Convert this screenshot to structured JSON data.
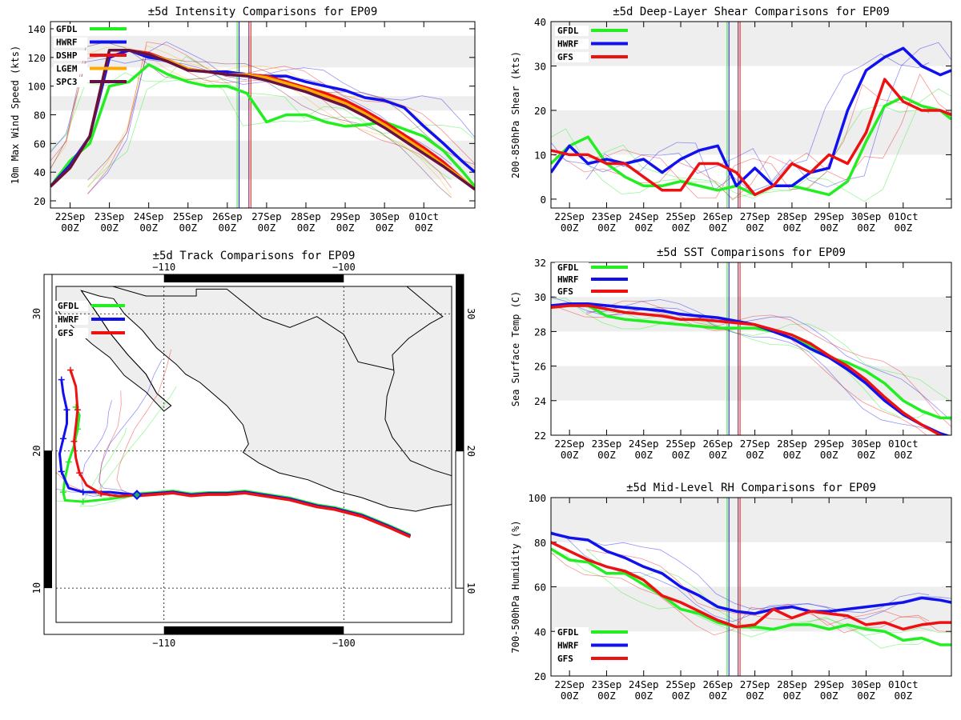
{
  "colors": {
    "gfdl": "#22ee22",
    "hwrf": "#1111ee",
    "gfs": "#ee1111",
    "dshp": "#ee1111",
    "lgem": "#ffaa00",
    "spc3": "#661144",
    "band": "#eeeeee",
    "land": "#eeeeee"
  },
  "time_axis": {
    "labels": [
      "22Sep",
      "23Sep",
      "24Sep",
      "25Sep",
      "26Sep",
      "27Sep",
      "28Sep",
      "29Sep",
      "30Sep",
      "01Oct"
    ],
    "sublabel": "00Z",
    "start": 21.5,
    "end": 32.3,
    "markers": [
      26.25,
      26.3,
      26.55,
      26.6
    ]
  },
  "chart_data": [
    {
      "id": "intensity",
      "type": "line",
      "title": "±5d Intensity Comparisons for EP09",
      "ylabel": "10m Max Wind Speed (kts)",
      "ylim": [
        15,
        145
      ],
      "yticks": [
        20,
        40,
        60,
        80,
        100,
        120,
        140
      ],
      "bands": [
        [
          35,
          62
        ],
        [
          83,
          93
        ],
        [
          113,
          135
        ]
      ],
      "legend": [
        "GFDL",
        "HWRF",
        "DSHP",
        "LGEM",
        "SPC3"
      ],
      "series": [
        {
          "name": "GFDL",
          "key": "gfdl",
          "x": [
            21.5,
            22,
            22.5,
            23,
            23.5,
            24,
            24.5,
            25,
            25.5,
            26,
            26.5,
            27,
            27.5,
            28,
            28.5,
            29,
            29.5,
            30,
            30.5,
            31,
            31.5,
            32,
            32.3
          ],
          "y": [
            30,
            48,
            60,
            100,
            103,
            115,
            108,
            103,
            100,
            100,
            95,
            75,
            80,
            80,
            75,
            72,
            73,
            75,
            70,
            65,
            55,
            40,
            30
          ]
        },
        {
          "name": "HWRF",
          "key": "hwrf",
          "x": [
            21.5,
            22,
            22.5,
            23,
            23.5,
            24,
            24.5,
            25,
            25.5,
            26,
            26.5,
            27,
            27.5,
            28,
            28.5,
            29,
            29.5,
            30,
            30.5,
            31,
            31.5,
            32,
            32.3
          ],
          "y": [
            30,
            45,
            65,
            120,
            125,
            120,
            118,
            112,
            110,
            110,
            108,
            107,
            107,
            103,
            100,
            97,
            92,
            90,
            85,
            72,
            60,
            47,
            40
          ]
        },
        {
          "name": "DSHP",
          "key": "dshp",
          "x": [
            21.5,
            22,
            22.5,
            23,
            23.5,
            24,
            24.5,
            25,
            25.5,
            26,
            26.5,
            27,
            27.5,
            28,
            28.5,
            29,
            29.5,
            30,
            30.5,
            31,
            31.5,
            32,
            32.3
          ],
          "y": [
            30,
            43,
            65,
            125,
            125,
            123,
            118,
            112,
            110,
            108,
            108,
            107,
            103,
            99,
            95,
            90,
            83,
            75,
            66,
            57,
            47,
            35,
            28
          ]
        },
        {
          "name": "LGEM",
          "key": "lgem",
          "x": [
            21.5,
            22,
            22.5,
            23,
            23.5,
            24,
            24.5,
            25,
            25.5,
            26,
            26.5,
            27,
            27.5,
            28,
            28.5,
            29,
            29.5,
            30,
            30.5,
            31,
            31.5,
            32,
            32.3
          ],
          "y": [
            30,
            43,
            65,
            125,
            125,
            122,
            118,
            112,
            110,
            108,
            108,
            106,
            102,
            98,
            93,
            88,
            81,
            73,
            64,
            55,
            45,
            35,
            28
          ]
        },
        {
          "name": "SPC3",
          "key": "spc3",
          "x": [
            21.5,
            22,
            22.5,
            23,
            23.5,
            24,
            24.5,
            25,
            25.5,
            26,
            26.5,
            27,
            27.5,
            28,
            28.5,
            29,
            29.5,
            30,
            30.5,
            31,
            31.5,
            32,
            32.3
          ],
          "y": [
            30,
            43,
            65,
            125,
            125,
            122,
            117,
            111,
            110,
            108,
            107,
            104,
            100,
            96,
            91,
            86,
            79,
            71,
            62,
            53,
            44,
            34,
            28
          ]
        }
      ]
    },
    {
      "id": "shear",
      "type": "line",
      "title": "±5d Deep-Layer Shear Comparisons for EP09",
      "ylabel": "200-850hPa Shear (kts)",
      "ylim": [
        -2,
        40
      ],
      "yticks": [
        0,
        10,
        20,
        30,
        40
      ],
      "bands": [
        [
          10,
          20
        ],
        [
          30,
          40
        ]
      ],
      "legend": [
        "GFDL",
        "HWRF",
        "GFS"
      ],
      "series": [
        {
          "name": "GFDL",
          "key": "gfdl",
          "x": [
            21.5,
            22,
            22.5,
            23,
            23.5,
            24,
            24.5,
            25,
            25.5,
            26,
            26.5,
            27,
            27.5,
            28,
            28.5,
            29,
            29.5,
            30,
            30.5,
            31,
            31.5,
            32,
            32.3
          ],
          "y": [
            8,
            12,
            14,
            8,
            5,
            3,
            3,
            4,
            3,
            2,
            3,
            1,
            3,
            3,
            2,
            1,
            4,
            13,
            21,
            23,
            21,
            20,
            18
          ]
        },
        {
          "name": "HWRF",
          "key": "hwrf",
          "x": [
            21.5,
            22,
            22.5,
            23,
            23.5,
            24,
            24.5,
            25,
            25.5,
            26,
            26.5,
            27,
            27.5,
            28,
            28.5,
            29,
            29.5,
            30,
            30.5,
            31,
            31.5,
            32,
            32.3
          ],
          "y": [
            6,
            12,
            8,
            9,
            8,
            9,
            6,
            9,
            11,
            12,
            3,
            7,
            3,
            3,
            6,
            7,
            20,
            29,
            32,
            34,
            30,
            28,
            29
          ]
        },
        {
          "name": "GFS",
          "key": "gfs",
          "x": [
            21.5,
            22,
            22.5,
            23,
            23.5,
            24,
            24.5,
            25,
            25.5,
            26,
            26.5,
            27,
            27.5,
            28,
            28.5,
            29,
            29.5,
            30,
            30.5,
            31,
            31.5,
            32,
            32.3
          ],
          "y": [
            11,
            10,
            10,
            8,
            8,
            5,
            2,
            2,
            8,
            8,
            6,
            1,
            3,
            8,
            6,
            10,
            8,
            15,
            27,
            22,
            20,
            20,
            19
          ]
        }
      ]
    },
    {
      "id": "sst",
      "type": "line",
      "title": "±5d SST Comparisons for EP09",
      "ylabel": "Sea Surface Temp (C)",
      "ylim": [
        22,
        32
      ],
      "yticks": [
        22,
        24,
        26,
        28,
        30,
        32
      ],
      "bands": [
        [
          24,
          26
        ],
        [
          28,
          30
        ]
      ],
      "legend": [
        "GFDL",
        "HWRF",
        "GFS"
      ],
      "series": [
        {
          "name": "GFDL",
          "key": "gfdl",
          "x": [
            21.5,
            22,
            22.5,
            23,
            23.5,
            24,
            24.5,
            25,
            25.5,
            26,
            26.5,
            27,
            27.5,
            28,
            28.5,
            29,
            29.5,
            30,
            30.5,
            31,
            31.5,
            32,
            32.3
          ],
          "y": [
            29.4,
            29.5,
            29.5,
            28.9,
            28.7,
            28.6,
            28.5,
            28.4,
            28.3,
            28.2,
            28.2,
            28.2,
            28.0,
            27.6,
            27.2,
            26.5,
            26.2,
            25.7,
            25.0,
            24.0,
            23.4,
            23.0,
            23.0
          ]
        },
        {
          "name": "HWRF",
          "key": "hwrf",
          "x": [
            21.5,
            22,
            22.5,
            23,
            23.5,
            24,
            24.5,
            25,
            25.5,
            26,
            26.5,
            27,
            27.5,
            28,
            28.5,
            29,
            29.5,
            30,
            30.5,
            31,
            31.5,
            32,
            32.3
          ],
          "y": [
            29.5,
            29.6,
            29.6,
            29.5,
            29.4,
            29.3,
            29.2,
            29.0,
            28.9,
            28.8,
            28.6,
            28.4,
            28.0,
            27.6,
            27.0,
            26.5,
            25.8,
            25.0,
            24.0,
            23.2,
            22.6,
            22.1,
            21.9
          ]
        },
        {
          "name": "GFS",
          "key": "gfs",
          "x": [
            21.5,
            22,
            22.5,
            23,
            23.5,
            24,
            24.5,
            25,
            25.5,
            26,
            26.5,
            27,
            27.5,
            28,
            28.5,
            29,
            29.5,
            30,
            30.5,
            31,
            31.5,
            32,
            32.3
          ],
          "y": [
            29.4,
            29.5,
            29.5,
            29.3,
            29.1,
            29.0,
            28.9,
            28.7,
            28.7,
            28.6,
            28.5,
            28.4,
            28.1,
            27.8,
            27.3,
            26.6,
            26.0,
            25.2,
            24.2,
            23.3,
            22.6,
            22.0,
            21.8
          ]
        }
      ]
    },
    {
      "id": "rh",
      "type": "line",
      "title": "±5d Mid-Level RH Comparisons for EP09",
      "ylabel": "700-500hPa Humidity (%)",
      "ylim": [
        20,
        100
      ],
      "yticks": [
        20,
        40,
        60,
        80,
        100
      ],
      "bands": [
        [
          40,
          60
        ],
        [
          80,
          100
        ]
      ],
      "legend": [
        "GFDL",
        "HWRF",
        "GFS"
      ],
      "series": [
        {
          "name": "GFDL",
          "key": "gfdl",
          "x": [
            21.5,
            22,
            22.5,
            23,
            23.5,
            24,
            24.5,
            25,
            25.5,
            26,
            26.5,
            27,
            27.5,
            28,
            28.5,
            29,
            29.5,
            30,
            30.5,
            31,
            31.5,
            32,
            32.3
          ],
          "y": [
            77,
            72,
            71,
            66,
            66,
            61,
            56,
            50,
            48,
            44,
            42,
            42,
            41,
            43,
            43,
            41,
            43,
            41,
            40,
            36,
            37,
            34,
            34
          ]
        },
        {
          "name": "HWRF",
          "key": "hwrf",
          "x": [
            21.5,
            22,
            22.5,
            23,
            23.5,
            24,
            24.5,
            25,
            25.5,
            26,
            26.5,
            27,
            27.5,
            28,
            28.5,
            29,
            29.5,
            30,
            30.5,
            31,
            31.5,
            32,
            32.3
          ],
          "y": [
            84,
            82,
            81,
            76,
            73,
            69,
            66,
            60,
            56,
            51,
            49,
            48,
            50,
            51,
            49,
            49,
            50,
            51,
            52,
            53,
            55,
            54,
            53
          ]
        },
        {
          "name": "GFS",
          "key": "gfs",
          "x": [
            21.5,
            22,
            22.5,
            23,
            23.5,
            24,
            24.5,
            25,
            25.5,
            26,
            26.5,
            27,
            27.5,
            28,
            28.5,
            29,
            29.5,
            30,
            30.5,
            31,
            31.5,
            32,
            32.3
          ],
          "y": [
            80,
            76,
            72,
            69,
            67,
            63,
            56,
            53,
            49,
            45,
            42,
            43,
            50,
            46,
            49,
            48,
            47,
            43,
            44,
            41,
            43,
            44,
            44
          ]
        }
      ]
    },
    {
      "id": "track",
      "type": "map",
      "title": "±5d Track Comparisons for EP09",
      "lon_range": [
        -116,
        -94
      ],
      "lat_range": [
        7.5,
        32
      ],
      "lon_ticks": [
        -110,
        -100
      ],
      "lat_ticks": [
        10,
        20,
        30
      ],
      "lon_labels": [
        "−110",
        "−100"
      ],
      "lat_labels": [
        "10",
        "20",
        "30"
      ],
      "legend": [
        "GFDL",
        "HWRF",
        "GFS"
      ],
      "history": {
        "lon": [
          -96.3,
          -97.5,
          -99,
          -100.5,
          -101.5,
          -103,
          -104.5,
          -105.5,
          -106.5,
          -107.5,
          -108.5,
          -109.5,
          -110.5,
          -111.5
        ],
        "lat": [
          13.8,
          14.5,
          15.3,
          15.8,
          16.0,
          16.5,
          16.8,
          17.0,
          16.9,
          16.9,
          16.8,
          17.0,
          16.9,
          16.8
        ]
      },
      "series": [
        {
          "name": "GFDL",
          "key": "gfdl",
          "lon": [
            -111.5,
            -113,
            -114.5,
            -115.5,
            -115.6,
            -115.5,
            -115.3,
            -115.0,
            -114.8,
            -114.7,
            -114.9
          ],
          "lat": [
            16.8,
            16.5,
            16.3,
            16.4,
            17.0,
            18.0,
            19.2,
            20.4,
            21.6,
            22.6,
            23.2
          ]
        },
        {
          "name": "HWRF",
          "key": "hwrf",
          "lon": [
            -111.5,
            -113,
            -114.5,
            -115.3,
            -115.7,
            -115.8,
            -115.6,
            -115.4,
            -115.4,
            -115.6,
            -115.7
          ],
          "lat": [
            16.8,
            17.0,
            17.0,
            17.3,
            18.5,
            19.8,
            20.9,
            22.0,
            23.0,
            24.2,
            25.2
          ]
        },
        {
          "name": "GFS",
          "key": "gfs",
          "lon": [
            -111.5,
            -112.5,
            -113.5,
            -114.3,
            -114.7,
            -114.9,
            -115.0,
            -114.9,
            -114.8,
            -114.9,
            -115.2
          ],
          "lat": [
            16.8,
            16.7,
            16.9,
            17.5,
            18.4,
            19.5,
            20.7,
            21.8,
            23.0,
            24.7,
            25.9
          ]
        }
      ]
    }
  ]
}
